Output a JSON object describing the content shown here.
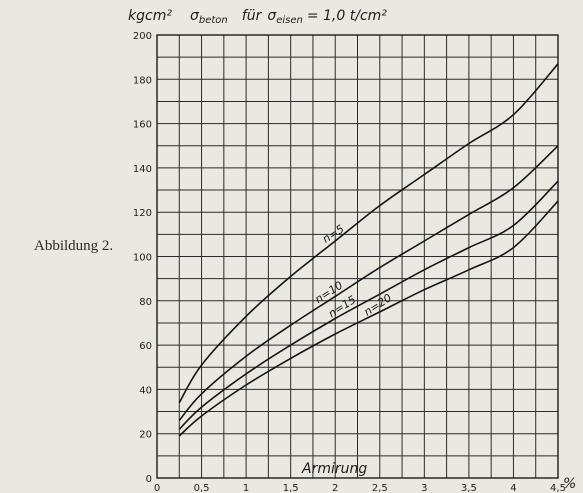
{
  "page": {
    "side_caption": "Abbildung 2."
  },
  "chart_data": {
    "type": "line",
    "title": {
      "sigma_left": "σ",
      "sigma_left_sub": "beton",
      "middle": "für",
      "sigma_right": "σ",
      "sigma_right_sub": "eisen",
      "rest": "= 1,0 t/cm²"
    },
    "ylabel": "kgcm²",
    "xlabel": "Armirung",
    "x_unit": "%",
    "xlim": [
      0,
      4.5
    ],
    "ylim": [
      0,
      200
    ],
    "x_ticks": [
      0,
      0.5,
      1,
      1.5,
      2,
      2.5,
      3,
      3.5,
      4,
      4.5
    ],
    "x_tick_labels": [
      "0",
      "0,5",
      "1",
      "1,5",
      "2",
      "2,5",
      "3",
      "3,5",
      "4",
      "4,5"
    ],
    "y_ticks": [
      0,
      20,
      40,
      60,
      80,
      100,
      120,
      140,
      160,
      180,
      200
    ],
    "y_tick_labels": [
      "0",
      "20",
      "40",
      "60",
      "80",
      "100",
      "120",
      "140",
      "160",
      "180",
      "200"
    ],
    "grid": true,
    "series": [
      {
        "name": "n=5",
        "points": [
          [
            0.25,
            34
          ],
          [
            0.5,
            51
          ],
          [
            1,
            73
          ],
          [
            1.5,
            91
          ],
          [
            2,
            107
          ],
          [
            2.5,
            123
          ],
          [
            3,
            137
          ],
          [
            3.5,
            151
          ],
          [
            4,
            164
          ],
          [
            4.5,
            187
          ]
        ]
      },
      {
        "name": "n=10",
        "points": [
          [
            0.25,
            26
          ],
          [
            0.5,
            38
          ],
          [
            1,
            55
          ],
          [
            1.5,
            69
          ],
          [
            2,
            82
          ],
          [
            2.5,
            95
          ],
          [
            3,
            107
          ],
          [
            3.5,
            119
          ],
          [
            4,
            131
          ],
          [
            4.5,
            150
          ]
        ]
      },
      {
        "name": "n=15",
        "points": [
          [
            0.25,
            22
          ],
          [
            0.5,
            32
          ],
          [
            1,
            47
          ],
          [
            1.5,
            60
          ],
          [
            2,
            72
          ],
          [
            2.5,
            83
          ],
          [
            3,
            94
          ],
          [
            3.5,
            104
          ],
          [
            4,
            114
          ],
          [
            4.5,
            134
          ]
        ]
      },
      {
        "name": "n=20",
        "points": [
          [
            0.25,
            19
          ],
          [
            0.5,
            28
          ],
          [
            1,
            42
          ],
          [
            1.5,
            54
          ],
          [
            2,
            65
          ],
          [
            2.5,
            75
          ],
          [
            3,
            85
          ],
          [
            3.5,
            94
          ],
          [
            4,
            104
          ],
          [
            4.5,
            125
          ]
        ]
      }
    ]
  }
}
